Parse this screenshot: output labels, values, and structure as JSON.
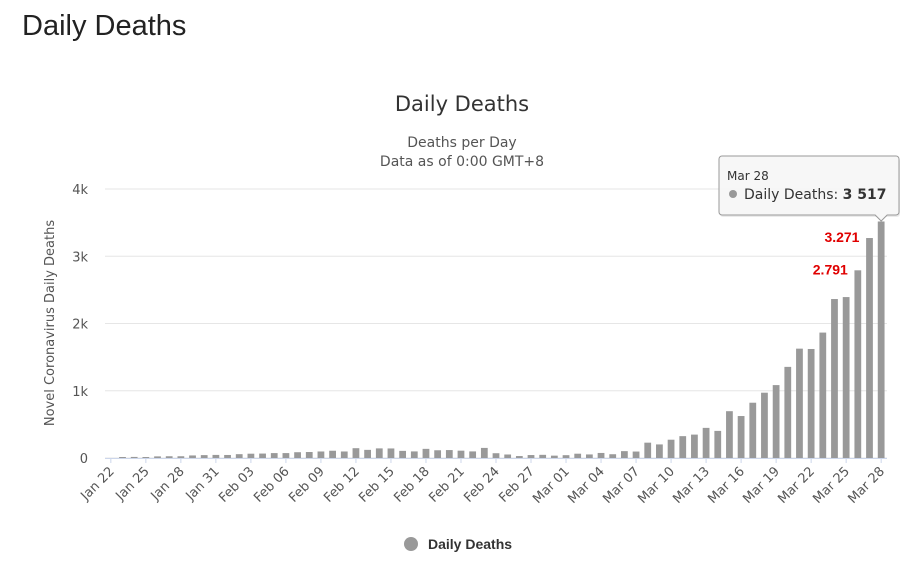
{
  "page": {
    "heading": "Daily Deaths"
  },
  "chart_data": {
    "type": "bar",
    "title": "Daily Deaths",
    "subtitle_lines": [
      "Deaths per Day",
      "Data as of 0:00 GMT+8"
    ],
    "xlabel": "",
    "ylabel": "Novel Coronavirus Daily Deaths",
    "ylim": [
      0,
      4000
    ],
    "y_ticks": [
      0,
      1000,
      2000,
      3000,
      4000
    ],
    "y_tick_labels": [
      "0",
      "1k",
      "2k",
      "3k",
      "4k"
    ],
    "x_tick_labels": [
      "Jan 22",
      "Jan 25",
      "Jan 28",
      "Jan 31",
      "Feb 03",
      "Feb 06",
      "Feb 09",
      "Feb 12",
      "Feb 15",
      "Feb 18",
      "Feb 21",
      "Feb 24",
      "Feb 27",
      "Mar 01",
      "Mar 04",
      "Mar 07",
      "Mar 10",
      "Mar 13",
      "Mar 16",
      "Mar 19",
      "Mar 22",
      "Mar 25",
      "Mar 28"
    ],
    "categories": [
      "Jan 22",
      "Jan 23",
      "Jan 24",
      "Jan 25",
      "Jan 26",
      "Jan 27",
      "Jan 28",
      "Jan 29",
      "Jan 30",
      "Jan 31",
      "Feb 01",
      "Feb 02",
      "Feb 03",
      "Feb 04",
      "Feb 05",
      "Feb 06",
      "Feb 07",
      "Feb 08",
      "Feb 09",
      "Feb 10",
      "Feb 11",
      "Feb 12",
      "Feb 13",
      "Feb 14",
      "Feb 15",
      "Feb 16",
      "Feb 17",
      "Feb 18",
      "Feb 19",
      "Feb 20",
      "Feb 21",
      "Feb 22",
      "Feb 23",
      "Feb 24",
      "Feb 25",
      "Feb 26",
      "Feb 27",
      "Feb 28",
      "Feb 29",
      "Mar 01",
      "Mar 02",
      "Mar 03",
      "Mar 04",
      "Mar 05",
      "Mar 06",
      "Mar 07",
      "Mar 08",
      "Mar 09",
      "Mar 10",
      "Mar 11",
      "Mar 12",
      "Mar 13",
      "Mar 14",
      "Mar 15",
      "Mar 16",
      "Mar 17",
      "Mar 18",
      "Mar 19",
      "Mar 20",
      "Mar 21",
      "Mar 22",
      "Mar 23",
      "Mar 24",
      "Mar 25",
      "Mar 26",
      "Mar 27",
      "Mar 28"
    ],
    "series": [
      {
        "name": "Daily Deaths",
        "color": "#999999",
        "values": [
          0,
          8,
          16,
          14,
          24,
          26,
          26,
          38,
          43,
          46,
          45,
          57,
          64,
          66,
          73,
          73,
          86,
          89,
          97,
          108,
          97,
          146,
          121,
          143,
          142,
          106,
          98,
          136,
          115,
          118,
          109,
          98,
          150,
          71,
          52,
          29,
          44,
          47,
          35,
          42,
          64,
          53,
          75,
          56,
          102,
          96,
          228,
          202,
          272,
          325,
          348,
          448,
          403,
          696,
          624,
          822,
          971,
          1084,
          1355,
          1626,
          1621,
          1865,
          2364,
          2393,
          2791,
          3271,
          3517
        ]
      }
    ],
    "annotations": [
      {
        "label": "3.271",
        "category": "Mar 27",
        "value": 3271,
        "color": "#e00000"
      },
      {
        "label": "2.791",
        "category": "Mar 26",
        "value": 2791,
        "color": "#e00000"
      }
    ],
    "tooltip": {
      "date": "Mar 28",
      "series_label": "Daily Deaths: ",
      "value_text": "3 517",
      "category": "Mar 28"
    },
    "legend": {
      "position": "bottom",
      "items": [
        {
          "label": "Daily Deaths",
          "color": "#999999"
        }
      ]
    },
    "grid": true
  }
}
